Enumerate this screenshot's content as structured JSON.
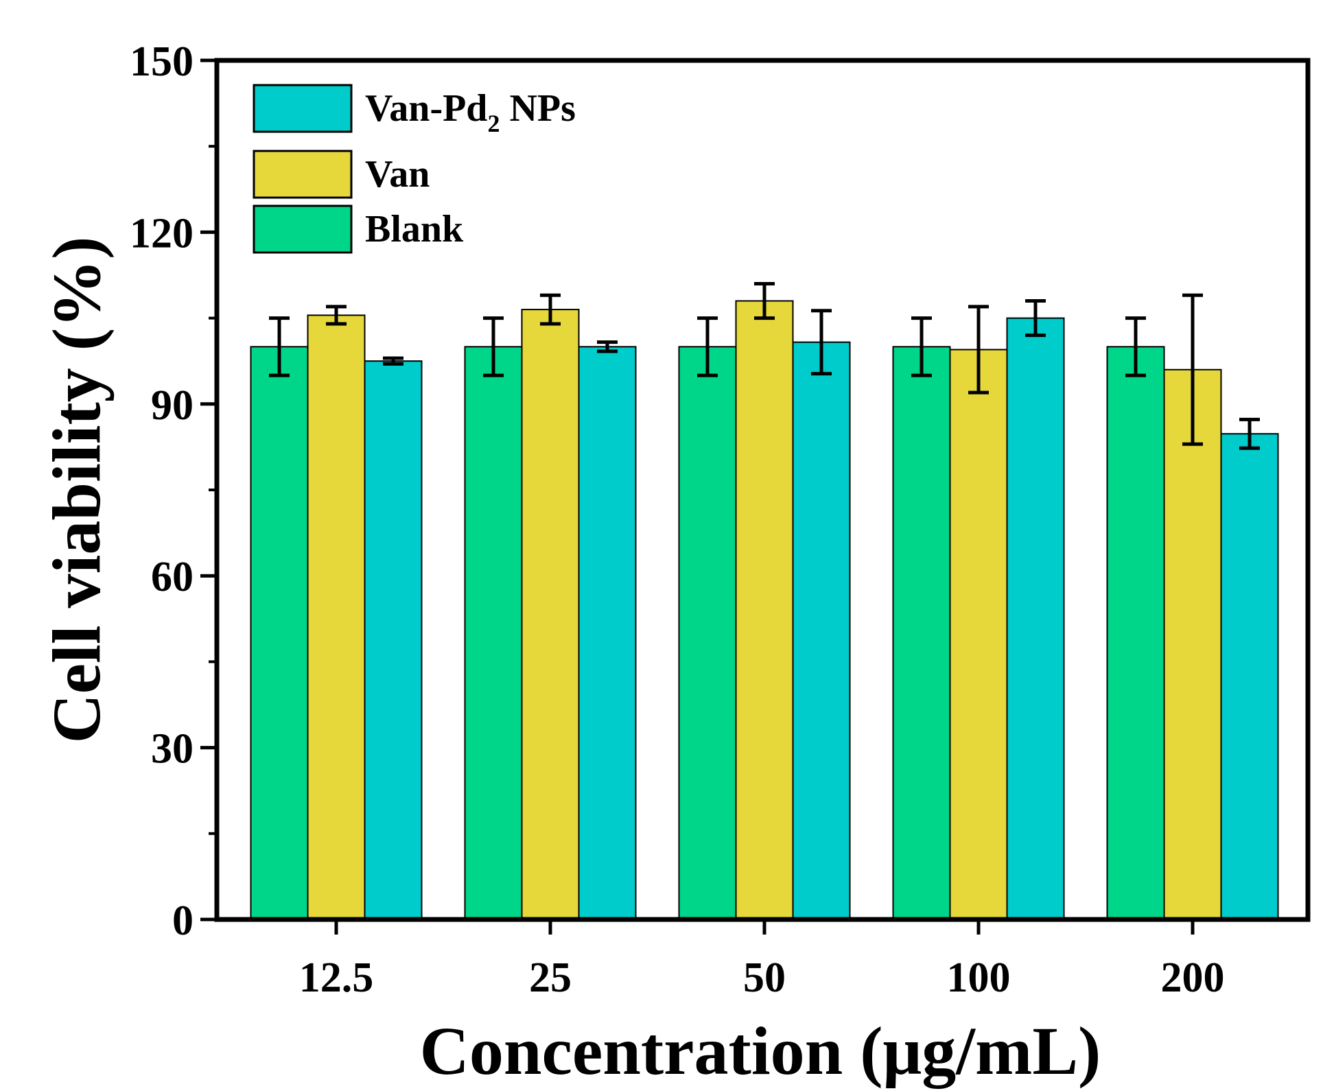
{
  "chart_data": {
    "type": "bar",
    "title": "",
    "xlabel": "Concentration (μg/mL)",
    "ylabel": "Cell viability (%)",
    "ylim": [
      0,
      150
    ],
    "yticks": [
      "0",
      "30",
      "60",
      "90",
      "120",
      "150"
    ],
    "ytick_values": [
      0,
      30,
      60,
      90,
      120,
      150
    ],
    "categories": [
      "12.5",
      "25",
      "50",
      "100",
      "200"
    ],
    "series": [
      {
        "name": "Blank",
        "color": "#00d68a",
        "values": [
          100,
          100,
          100,
          100,
          100
        ],
        "errors": [
          5,
          5,
          5,
          5,
          5
        ]
      },
      {
        "name": "Van",
        "color": "#e6d83a",
        "values": [
          105.5,
          106.5,
          108,
          99.5,
          96
        ],
        "errors": [
          1.5,
          2.5,
          3,
          7.5,
          13
        ]
      },
      {
        "name": "Van-Pd2 NPs",
        "color": "#00cccc",
        "values": [
          97.5,
          100,
          100.8,
          105,
          84.8
        ],
        "errors": [
          0.5,
          0.8,
          5.5,
          3,
          2.5
        ]
      }
    ],
    "legend": {
      "position": "top-left",
      "entries": [
        {
          "name": "Van-Pd",
          "subscript": "2",
          "suffix": " NPs",
          "color": "#00cccc"
        },
        {
          "name": "Van",
          "color": "#e6d83a"
        },
        {
          "name": "Blank",
          "color": "#00d68a"
        }
      ]
    },
    "grid": false
  }
}
